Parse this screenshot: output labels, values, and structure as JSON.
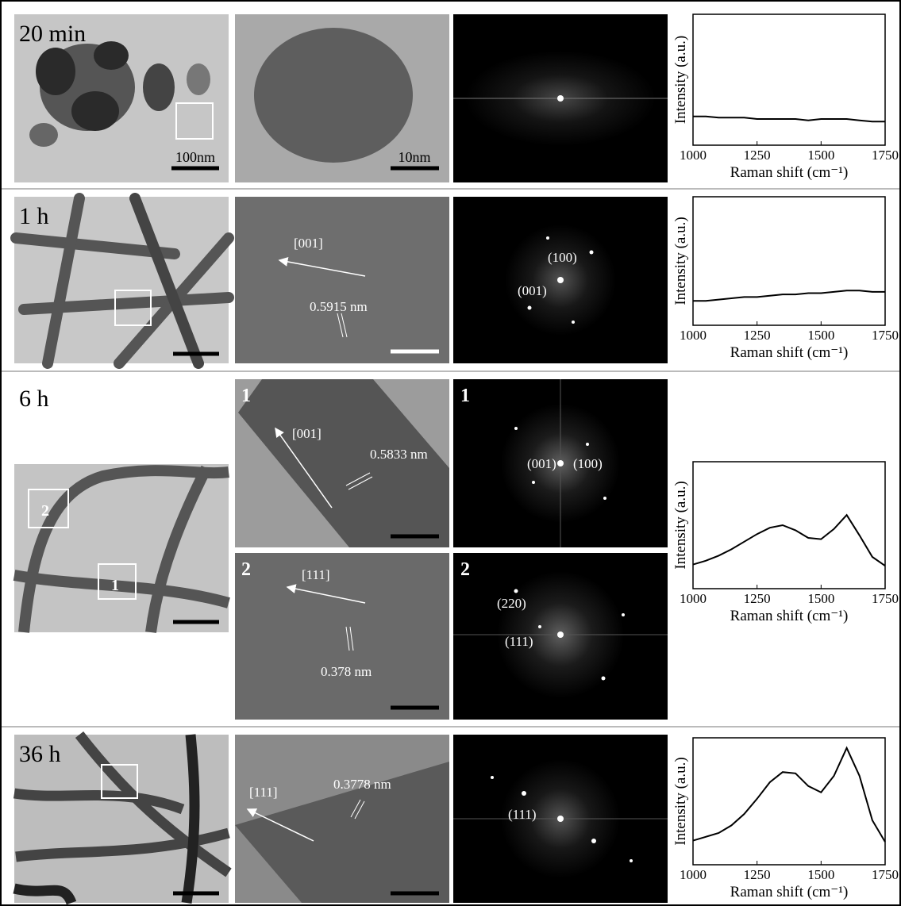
{
  "rows": [
    {
      "time": "20 min",
      "tem_scale": "100nm",
      "hrtem_scale": "10nm"
    },
    {
      "time": "1 h",
      "direction": "[001]",
      "spacing": "0.5915 nm",
      "fft_labels": [
        "(100)",
        "(001)"
      ]
    },
    {
      "time": "6 h",
      "regions": [
        "2",
        "1"
      ],
      "sub": [
        {
          "index": "1",
          "direction": "[001]",
          "spacing": "0.5833 nm",
          "fft_labels": [
            "(001)",
            "(100)"
          ]
        },
        {
          "index": "2",
          "direction": "[111]",
          "spacing": "0.378 nm",
          "fft_labels": [
            "(220)",
            "(111)"
          ]
        }
      ]
    },
    {
      "time": "36 h",
      "direction": "[111]",
      "spacing": "0.3778 nm",
      "fft_labels": [
        "(111)"
      ]
    }
  ],
  "chart_data": [
    {
      "type": "line",
      "xlabel": "Raman shift (cm⁻¹)",
      "ylabel": "Intensity (a.u.)",
      "color": "#000000",
      "x": [
        1000,
        1050,
        1100,
        1150,
        1200,
        1250,
        1300,
        1350,
        1400,
        1450,
        1500,
        1550,
        1600,
        1650,
        1700,
        1750
      ],
      "values": [
        0.22,
        0.22,
        0.21,
        0.21,
        0.21,
        0.2,
        0.2,
        0.2,
        0.2,
        0.19,
        0.2,
        0.2,
        0.2,
        0.19,
        0.18,
        0.18
      ],
      "xlim": [
        1000,
        1750
      ],
      "ylim": [
        0,
        1
      ],
      "xticks": [
        1000,
        1250,
        1500,
        1750
      ]
    },
    {
      "type": "line",
      "xlabel": "Raman shift (cm⁻¹)",
      "ylabel": "Intensity (a.u.)",
      "color": "#000000",
      "x": [
        1000,
        1050,
        1100,
        1150,
        1200,
        1250,
        1300,
        1350,
        1400,
        1450,
        1500,
        1550,
        1600,
        1650,
        1700,
        1750
      ],
      "values": [
        0.19,
        0.19,
        0.2,
        0.21,
        0.22,
        0.22,
        0.23,
        0.24,
        0.24,
        0.25,
        0.25,
        0.26,
        0.27,
        0.27,
        0.26,
        0.26
      ],
      "xlim": [
        1000,
        1750
      ],
      "ylim": [
        0,
        1
      ],
      "xticks": [
        1000,
        1250,
        1500,
        1750
      ]
    },
    {
      "type": "line",
      "xlabel": "Raman shift (cm⁻¹)",
      "ylabel": "Intensity (a.u.)",
      "color": "#000000",
      "x": [
        1000,
        1050,
        1100,
        1150,
        1200,
        1250,
        1300,
        1350,
        1400,
        1450,
        1500,
        1550,
        1600,
        1650,
        1700,
        1750
      ],
      "values": [
        0.19,
        0.22,
        0.26,
        0.31,
        0.37,
        0.43,
        0.48,
        0.5,
        0.46,
        0.4,
        0.39,
        0.47,
        0.58,
        0.42,
        0.25,
        0.18
      ],
      "xlim": [
        1000,
        1750
      ],
      "ylim": [
        0,
        1
      ],
      "xticks": [
        1000,
        1250,
        1500,
        1750
      ]
    },
    {
      "type": "line",
      "xlabel": "Raman shift (cm⁻¹)",
      "ylabel": "Intensity (a.u.)",
      "color": "#000000",
      "x": [
        1000,
        1050,
        1100,
        1150,
        1200,
        1250,
        1300,
        1350,
        1400,
        1450,
        1500,
        1550,
        1600,
        1650,
        1700,
        1750
      ],
      "values": [
        0.19,
        0.22,
        0.25,
        0.31,
        0.4,
        0.52,
        0.65,
        0.73,
        0.72,
        0.62,
        0.57,
        0.7,
        0.92,
        0.7,
        0.35,
        0.18
      ],
      "xlim": [
        1000,
        1750
      ],
      "ylim": [
        0,
        1
      ],
      "xticks": [
        1000,
        1250,
        1500,
        1750
      ]
    }
  ]
}
